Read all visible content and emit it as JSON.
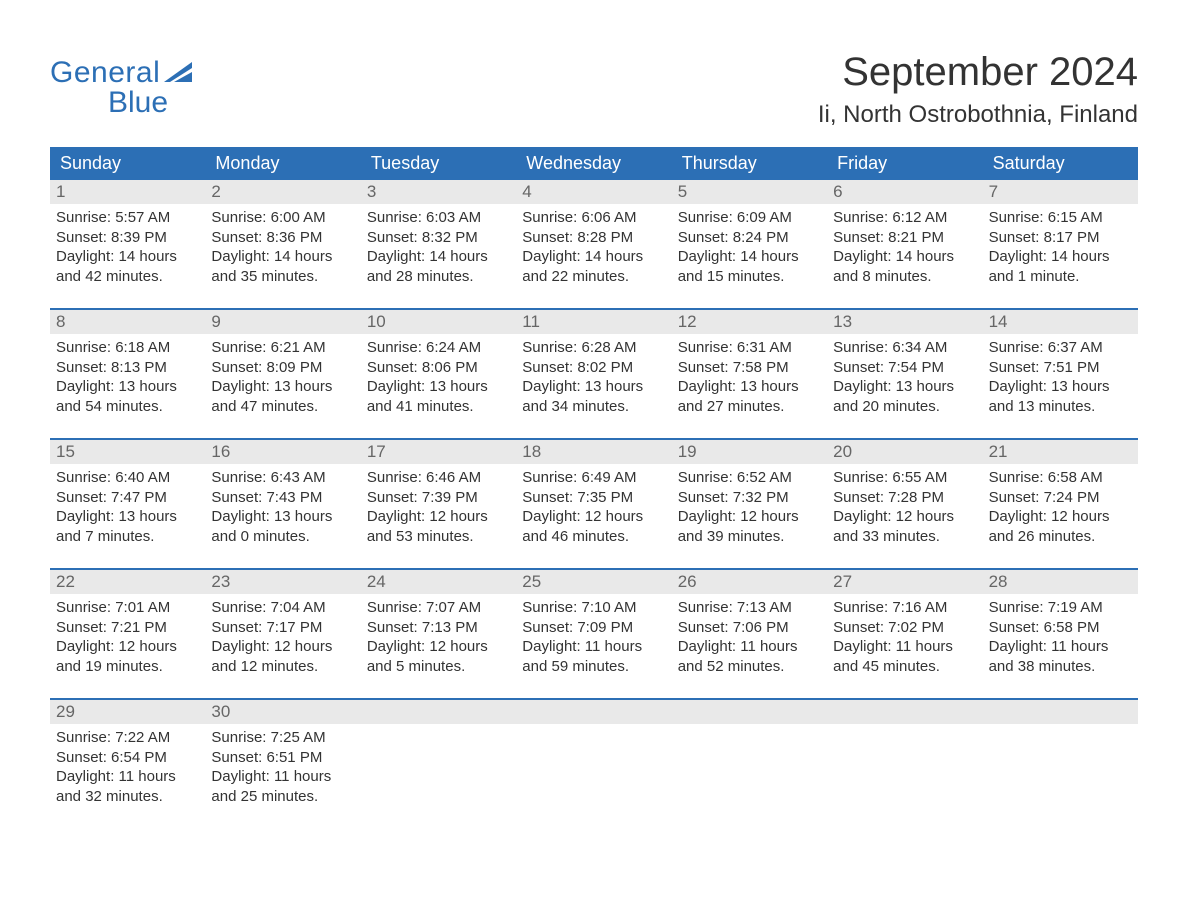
{
  "brand": {
    "line1": "General",
    "line2": "Blue",
    "accent_color": "#2c6fb5"
  },
  "title": "September 2024",
  "location": "Ii, North Ostrobothnia, Finland",
  "day_headers": [
    "Sunday",
    "Monday",
    "Tuesday",
    "Wednesday",
    "Thursday",
    "Friday",
    "Saturday"
  ],
  "colors": {
    "header_bg": "#2c6fb5",
    "header_text": "#ffffff",
    "daynum_bg": "#e9e9e9",
    "daynum_text": "#666666",
    "body_text": "#333333",
    "page_bg": "#ffffff",
    "week_divider": "#2c6fb5"
  },
  "fonts": {
    "title_size_pt": 30,
    "location_size_pt": 18,
    "dayheader_size_pt": 13,
    "cell_size_pt": 11
  },
  "weeks": [
    [
      {
        "day": "1",
        "sunrise": "Sunrise: 5:57 AM",
        "sunset": "Sunset: 8:39 PM",
        "d1": "Daylight: 14 hours",
        "d2": "and 42 minutes."
      },
      {
        "day": "2",
        "sunrise": "Sunrise: 6:00 AM",
        "sunset": "Sunset: 8:36 PM",
        "d1": "Daylight: 14 hours",
        "d2": "and 35 minutes."
      },
      {
        "day": "3",
        "sunrise": "Sunrise: 6:03 AM",
        "sunset": "Sunset: 8:32 PM",
        "d1": "Daylight: 14 hours",
        "d2": "and 28 minutes."
      },
      {
        "day": "4",
        "sunrise": "Sunrise: 6:06 AM",
        "sunset": "Sunset: 8:28 PM",
        "d1": "Daylight: 14 hours",
        "d2": "and 22 minutes."
      },
      {
        "day": "5",
        "sunrise": "Sunrise: 6:09 AM",
        "sunset": "Sunset: 8:24 PM",
        "d1": "Daylight: 14 hours",
        "d2": "and 15 minutes."
      },
      {
        "day": "6",
        "sunrise": "Sunrise: 6:12 AM",
        "sunset": "Sunset: 8:21 PM",
        "d1": "Daylight: 14 hours",
        "d2": "and 8 minutes."
      },
      {
        "day": "7",
        "sunrise": "Sunrise: 6:15 AM",
        "sunset": "Sunset: 8:17 PM",
        "d1": "Daylight: 14 hours",
        "d2": "and 1 minute."
      }
    ],
    [
      {
        "day": "8",
        "sunrise": "Sunrise: 6:18 AM",
        "sunset": "Sunset: 8:13 PM",
        "d1": "Daylight: 13 hours",
        "d2": "and 54 minutes."
      },
      {
        "day": "9",
        "sunrise": "Sunrise: 6:21 AM",
        "sunset": "Sunset: 8:09 PM",
        "d1": "Daylight: 13 hours",
        "d2": "and 47 minutes."
      },
      {
        "day": "10",
        "sunrise": "Sunrise: 6:24 AM",
        "sunset": "Sunset: 8:06 PM",
        "d1": "Daylight: 13 hours",
        "d2": "and 41 minutes."
      },
      {
        "day": "11",
        "sunrise": "Sunrise: 6:28 AM",
        "sunset": "Sunset: 8:02 PM",
        "d1": "Daylight: 13 hours",
        "d2": "and 34 minutes."
      },
      {
        "day": "12",
        "sunrise": "Sunrise: 6:31 AM",
        "sunset": "Sunset: 7:58 PM",
        "d1": "Daylight: 13 hours",
        "d2": "and 27 minutes."
      },
      {
        "day": "13",
        "sunrise": "Sunrise: 6:34 AM",
        "sunset": "Sunset: 7:54 PM",
        "d1": "Daylight: 13 hours",
        "d2": "and 20 minutes."
      },
      {
        "day": "14",
        "sunrise": "Sunrise: 6:37 AM",
        "sunset": "Sunset: 7:51 PM",
        "d1": "Daylight: 13 hours",
        "d2": "and 13 minutes."
      }
    ],
    [
      {
        "day": "15",
        "sunrise": "Sunrise: 6:40 AM",
        "sunset": "Sunset: 7:47 PM",
        "d1": "Daylight: 13 hours",
        "d2": "and 7 minutes."
      },
      {
        "day": "16",
        "sunrise": "Sunrise: 6:43 AM",
        "sunset": "Sunset: 7:43 PM",
        "d1": "Daylight: 13 hours",
        "d2": "and 0 minutes."
      },
      {
        "day": "17",
        "sunrise": "Sunrise: 6:46 AM",
        "sunset": "Sunset: 7:39 PM",
        "d1": "Daylight: 12 hours",
        "d2": "and 53 minutes."
      },
      {
        "day": "18",
        "sunrise": "Sunrise: 6:49 AM",
        "sunset": "Sunset: 7:35 PM",
        "d1": "Daylight: 12 hours",
        "d2": "and 46 minutes."
      },
      {
        "day": "19",
        "sunrise": "Sunrise: 6:52 AM",
        "sunset": "Sunset: 7:32 PM",
        "d1": "Daylight: 12 hours",
        "d2": "and 39 minutes."
      },
      {
        "day": "20",
        "sunrise": "Sunrise: 6:55 AM",
        "sunset": "Sunset: 7:28 PM",
        "d1": "Daylight: 12 hours",
        "d2": "and 33 minutes."
      },
      {
        "day": "21",
        "sunrise": "Sunrise: 6:58 AM",
        "sunset": "Sunset: 7:24 PM",
        "d1": "Daylight: 12 hours",
        "d2": "and 26 minutes."
      }
    ],
    [
      {
        "day": "22",
        "sunrise": "Sunrise: 7:01 AM",
        "sunset": "Sunset: 7:21 PM",
        "d1": "Daylight: 12 hours",
        "d2": "and 19 minutes."
      },
      {
        "day": "23",
        "sunrise": "Sunrise: 7:04 AM",
        "sunset": "Sunset: 7:17 PM",
        "d1": "Daylight: 12 hours",
        "d2": "and 12 minutes."
      },
      {
        "day": "24",
        "sunrise": "Sunrise: 7:07 AM",
        "sunset": "Sunset: 7:13 PM",
        "d1": "Daylight: 12 hours",
        "d2": "and 5 minutes."
      },
      {
        "day": "25",
        "sunrise": "Sunrise: 7:10 AM",
        "sunset": "Sunset: 7:09 PM",
        "d1": "Daylight: 11 hours",
        "d2": "and 59 minutes."
      },
      {
        "day": "26",
        "sunrise": "Sunrise: 7:13 AM",
        "sunset": "Sunset: 7:06 PM",
        "d1": "Daylight: 11 hours",
        "d2": "and 52 minutes."
      },
      {
        "day": "27",
        "sunrise": "Sunrise: 7:16 AM",
        "sunset": "Sunset: 7:02 PM",
        "d1": "Daylight: 11 hours",
        "d2": "and 45 minutes."
      },
      {
        "day": "28",
        "sunrise": "Sunrise: 7:19 AM",
        "sunset": "Sunset: 6:58 PM",
        "d1": "Daylight: 11 hours",
        "d2": "and 38 minutes."
      }
    ],
    [
      {
        "day": "29",
        "sunrise": "Sunrise: 7:22 AM",
        "sunset": "Sunset: 6:54 PM",
        "d1": "Daylight: 11 hours",
        "d2": "and 32 minutes."
      },
      {
        "day": "30",
        "sunrise": "Sunrise: 7:25 AM",
        "sunset": "Sunset: 6:51 PM",
        "d1": "Daylight: 11 hours",
        "d2": "and 25 minutes."
      },
      null,
      null,
      null,
      null,
      null
    ]
  ]
}
